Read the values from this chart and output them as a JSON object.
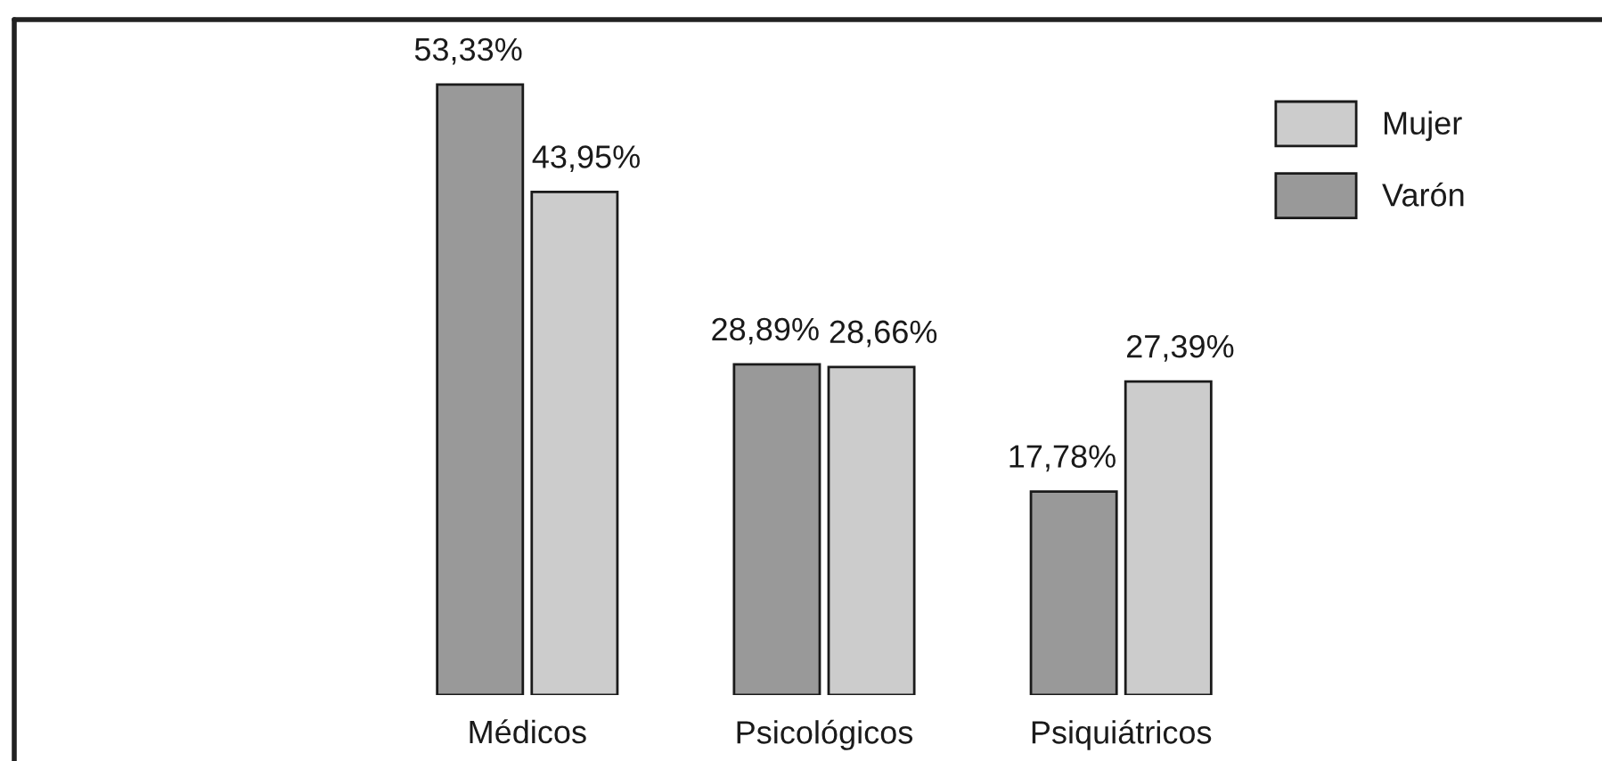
{
  "chart_data": {
    "type": "bar",
    "categories": [
      "Médicos",
      "Psicológicos",
      "Psiquiátricos"
    ],
    "series": [
      {
        "name": "Varón",
        "color": "#999999",
        "values": [
          53.33,
          28.89,
          17.78
        ],
        "value_labels": [
          "53,33%",
          "28,89%",
          "17,78%"
        ]
      },
      {
        "name": "Mujer",
        "color": "#cccccc",
        "values": [
          43.95,
          28.66,
          27.39
        ],
        "value_labels": [
          "43,95%",
          "28,66%",
          "27,39%"
        ]
      }
    ],
    "legend": "top right"
  }
}
